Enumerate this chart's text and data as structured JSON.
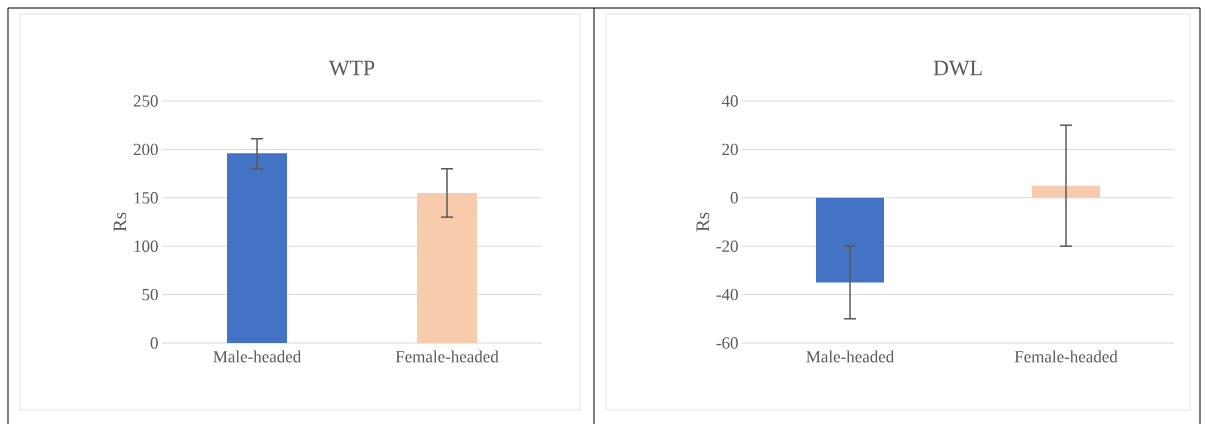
{
  "chart_data": [
    {
      "type": "bar",
      "title": "WTP",
      "ylabel": "Rs",
      "categories": [
        "Male-headed",
        "Female-headed"
      ],
      "values": [
        196,
        155
      ],
      "colors": [
        "#4472c4",
        "#f8cbad"
      ],
      "errors": [
        [
          180,
          211
        ],
        [
          130,
          180
        ]
      ],
      "ylim": [
        0,
        250
      ],
      "yticks": [
        0,
        50,
        100,
        150,
        200,
        250
      ],
      "grid": "y"
    },
    {
      "type": "bar",
      "title": "DWL",
      "ylabel": "Rs",
      "categories": [
        "Male-headed",
        "Female-headed"
      ],
      "values": [
        -35,
        5
      ],
      "colors": [
        "#4472c4",
        "#f8cbad"
      ],
      "errors": [
        [
          -50,
          -20
        ],
        [
          -20,
          30
        ]
      ],
      "ylim": [
        -60,
        40
      ],
      "yticks": [
        -60,
        -40,
        -20,
        0,
        20,
        40
      ],
      "grid": "y"
    }
  ]
}
